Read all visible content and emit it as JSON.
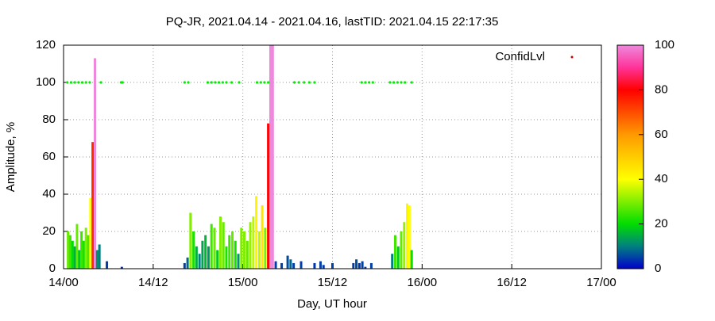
{
  "chart_data": {
    "type": "bar",
    "title": "PQ-JR, 2021.04.14 - 2021.04.16, lastTID: 2021.04.15 22:17:35",
    "x_label": "Day, UT hour",
    "y_label": "Amplitude, %",
    "legend": "ConfidLvl",
    "legend_color": "#cc0000",
    "legend_position": "top-right",
    "grid": true,
    "xlim": [
      0,
      72
    ],
    "xticks": [
      {
        "value": 0,
        "label": "14/00"
      },
      {
        "value": 12,
        "label": "14/12"
      },
      {
        "value": 24,
        "label": "15/00"
      },
      {
        "value": 36,
        "label": "15/12"
      },
      {
        "value": 48,
        "label": "16/00"
      },
      {
        "value": 60,
        "label": "16/12"
      },
      {
        "value": 72,
        "label": "17/00"
      }
    ],
    "ylim": [
      0,
      120
    ],
    "yticks": [
      0,
      20,
      40,
      60,
      80,
      100,
      120
    ],
    "cblim": [
      0,
      100
    ],
    "cbticks": [
      0,
      20,
      40,
      60,
      80,
      100
    ],
    "palette": [
      {
        "value": 0,
        "color": "#0000cc"
      },
      {
        "value": 10,
        "color": "#008080"
      },
      {
        "value": 20,
        "color": "#00dd00"
      },
      {
        "value": 40,
        "color": "#ffff00"
      },
      {
        "value": 60,
        "color": "#ff9900"
      },
      {
        "value": 80,
        "color": "#ff0000"
      },
      {
        "value": 90,
        "color": "#ff3399"
      },
      {
        "value": 100,
        "color": "#ee88dd"
      }
    ],
    "x": [
      0.6,
      0.9,
      1.2,
      1.5,
      1.8,
      2.1,
      2.4,
      2.7,
      3.0,
      3.3,
      3.6,
      3.9,
      4.2,
      4.5,
      4.8,
      5.8,
      7.8,
      16.2,
      16.6,
      17.0,
      17.4,
      17.8,
      18.2,
      18.6,
      19.0,
      19.4,
      19.8,
      20.2,
      20.6,
      21.0,
      21.4,
      21.8,
      22.2,
      22.6,
      23.0,
      23.4,
      23.8,
      24.2,
      24.6,
      25.0,
      25.4,
      25.8,
      26.2,
      26.6,
      27.0,
      27.4,
      27.7,
      28.0,
      28.4,
      29.2,
      30.0,
      30.4,
      30.8,
      31.8,
      33.6,
      34.4,
      34.8,
      36.0,
      38.8,
      39.2,
      39.6,
      40.0,
      40.4,
      41.2,
      44.0,
      44.4,
      44.8,
      45.2,
      45.6,
      46.0,
      46.3,
      46.6
    ],
    "values": [
      20,
      18,
      15,
      12,
      24,
      10,
      20,
      15,
      22,
      18,
      38,
      68,
      113,
      10,
      13,
      4,
      1,
      3,
      6,
      30,
      20,
      12,
      8,
      15,
      18,
      12,
      24,
      22,
      10,
      28,
      25,
      12,
      18,
      20,
      15,
      8,
      22,
      20,
      15,
      25,
      28,
      39,
      20,
      34,
      22,
      78,
      120,
      120,
      4,
      3,
      7,
      5,
      3,
      4,
      3,
      4,
      2,
      3,
      3,
      5,
      3,
      4,
      1,
      3,
      8,
      18,
      12,
      20,
      25,
      35,
      34,
      10
    ],
    "confidence": [
      28,
      25,
      20,
      15,
      28,
      18,
      25,
      22,
      30,
      26,
      40,
      75,
      100,
      12,
      10,
      5,
      3,
      5,
      8,
      30,
      22,
      15,
      10,
      14,
      16,
      12,
      25,
      28,
      18,
      30,
      28,
      22,
      25,
      28,
      22,
      12,
      30,
      30,
      28,
      32,
      35,
      42,
      35,
      45,
      30,
      80,
      100,
      100,
      5,
      5,
      6,
      8,
      5,
      5,
      4,
      5,
      4,
      5,
      5,
      6,
      4,
      5,
      4,
      5,
      10,
      25,
      18,
      28,
      32,
      42,
      40,
      20
    ],
    "dots": {
      "color": "#00ee00",
      "x": [
        0.5,
        1,
        1.5,
        2,
        2.5,
        3,
        3.5,
        5,
        7.7,
        7.9,
        16.2,
        16.7,
        19.3,
        19.8,
        20.3,
        20.8,
        21.3,
        21.8,
        22.5,
        23.5,
        25.9,
        26.4,
        26.9,
        27.4,
        30.9,
        31.5,
        32.2,
        32.9,
        33.6,
        39.9,
        40.4,
        40.9,
        41.4,
        43.7,
        44.2,
        44.7,
        45.2,
        45.7,
        46.6
      ],
      "values": [
        100,
        100,
        100,
        100,
        100,
        100,
        100,
        100,
        100,
        100,
        100,
        100,
        100,
        100,
        100,
        100,
        100,
        100,
        100,
        100,
        100,
        100,
        100,
        100,
        100,
        100,
        100,
        100,
        100,
        100,
        100,
        100,
        100,
        100,
        100,
        100,
        100,
        100,
        100
      ]
    }
  }
}
